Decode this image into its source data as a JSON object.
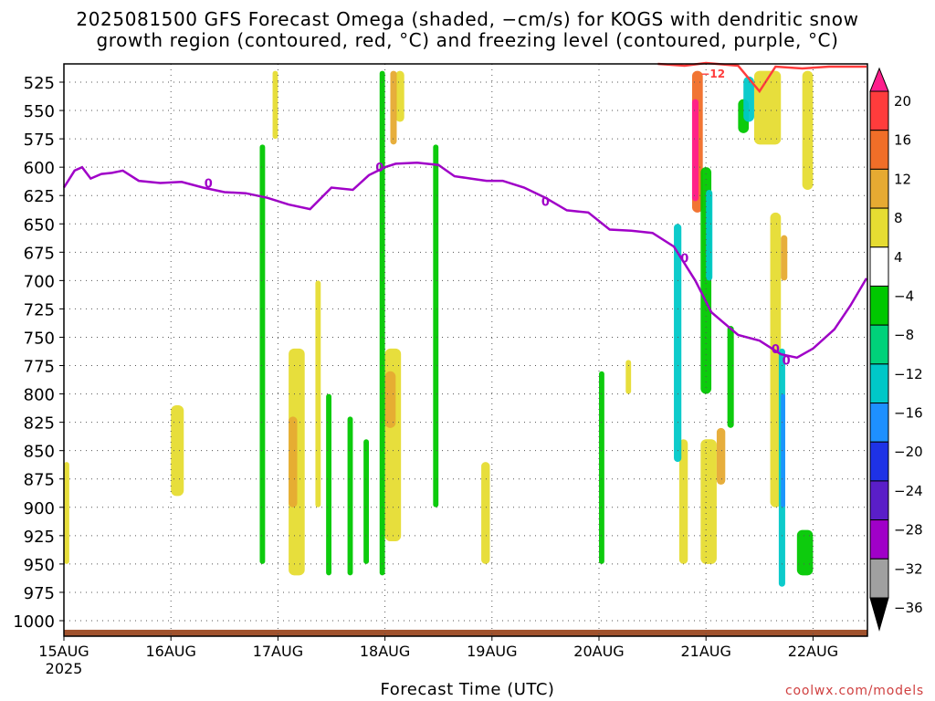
{
  "chart_data": {
    "type": "heatmap",
    "title": "2025081500 GFS Forecast Omega (shaded, −cm/s) for KOGS with dendritic snow",
    "subtitle": "growth region (contoured, red, °C) and freezing level (contoured, purple, °C)",
    "xlabel": "Forecast Time (UTC)",
    "x_ticks": [
      "15AUG",
      "16AUG",
      "17AUG",
      "18AUG",
      "19AUG",
      "20AUG",
      "21AUG",
      "22AUG"
    ],
    "x_year": "2025",
    "y_ticks": [
      525,
      550,
      575,
      600,
      625,
      650,
      675,
      700,
      725,
      750,
      775,
      800,
      825,
      850,
      875,
      900,
      925,
      950,
      975,
      1000
    ],
    "ylim": [
      1010,
      510
    ],
    "xlim_days": [
      0,
      7.5
    ],
    "grid": true,
    "colorbar": {
      "labels": [
        "20",
        "16",
        "12",
        "8",
        "4",
        "−4",
        "−8",
        "−12",
        "−16",
        "−20",
        "−24",
        "−28",
        "−32",
        "−36"
      ],
      "colors": [
        "#ff1e8c",
        "#ff3c3c",
        "#f06e28",
        "#e6aa32",
        "#e6dc32",
        "#ffffff",
        "#00c800",
        "#00d27a",
        "#00c8c8",
        "#1e90ff",
        "#1e32e6",
        "#5a1ec8",
        "#a000c8",
        "#a0a0a0",
        "#000000"
      ]
    },
    "freezing_level": {
      "color": "#a000c8",
      "label": "0",
      "x": [
        0,
        0.1,
        0.17,
        0.25,
        0.35,
        0.45,
        0.55,
        0.7,
        0.9,
        1.1,
        1.3,
        1.5,
        1.7,
        1.9,
        2.1,
        2.3,
        2.5,
        2.7,
        2.85,
        3.0,
        3.1,
        3.3,
        3.5,
        3.65,
        3.8,
        3.95,
        4.1,
        4.3,
        4.5,
        4.7,
        4.9,
        5.1,
        5.3,
        5.5,
        5.7,
        5.9,
        6.05,
        6.15,
        6.3,
        6.5,
        6.7,
        6.85,
        7.0,
        7.2,
        7.35,
        7.5
      ],
      "pressure": [
        618,
        603,
        600,
        610,
        606,
        605,
        603,
        612,
        614,
        613,
        618,
        622,
        623,
        627,
        633,
        637,
        618,
        620,
        607,
        600,
        597,
        596,
        598,
        608,
        610,
        612,
        612,
        618,
        627,
        638,
        640,
        655,
        656,
        658,
        670,
        700,
        728,
        736,
        748,
        753,
        765,
        768,
        760,
        743,
        722,
        698
      ]
    },
    "dgz_contour": {
      "color": "#ff3c3c",
      "label": "−12"
    },
    "ground": {
      "color": "#a0522d",
      "pressure": 1008
    }
  },
  "footer": {
    "credit": "coolwx.com/models"
  }
}
